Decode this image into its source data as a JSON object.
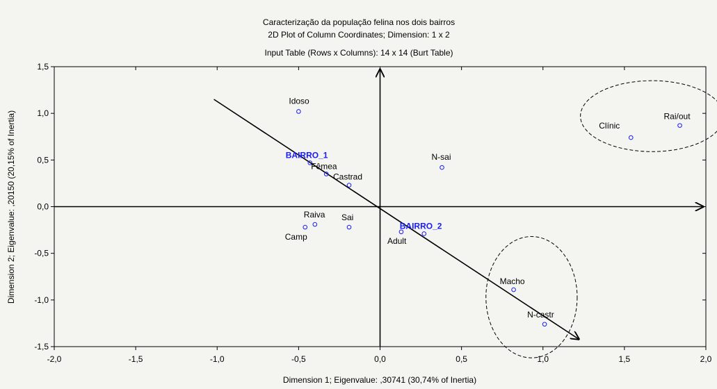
{
  "chart_data": {
    "type": "scatter",
    "title": "Caracterização da população felina nos dois bairros",
    "subtitle": "2D Plot of Column Coordinates; Dimension:  1 x 2",
    "subtitle2": "Input Table (Rows x Columns): 14 x 14 (Burt Table)",
    "xlabel": "Dimension 1; Eigenvalue: ,30741 (30,74% of Inertia)",
    "ylabel": "Dimension 2; Eigenvalue: ,20150 (20,15% of Inertia)",
    "xlim": [
      -2.0,
      2.0
    ],
    "ylim": [
      -1.5,
      1.5
    ],
    "xticks": [
      {
        "v": -2.0,
        "label": "-2,0"
      },
      {
        "v": -1.5,
        "label": "-1,5"
      },
      {
        "v": -1.0,
        "label": "-1,0"
      },
      {
        "v": -0.5,
        "label": "-0,5"
      },
      {
        "v": 0.0,
        "label": "0,0"
      },
      {
        "v": 0.5,
        "label": "0,5"
      },
      {
        "v": 1.0,
        "label": "1,0"
      },
      {
        "v": 1.5,
        "label": "1,5"
      },
      {
        "v": 2.0,
        "label": "2,0"
      }
    ],
    "yticks": [
      {
        "v": -1.5,
        "label": "-1,5"
      },
      {
        "v": -1.0,
        "label": "-1,0"
      },
      {
        "v": -0.5,
        "label": "-0,5"
      },
      {
        "v": 0.0,
        "label": "0,0"
      },
      {
        "v": 0.5,
        "label": "0,5"
      },
      {
        "v": 1.0,
        "label": "1,0"
      },
      {
        "v": 1.5,
        "label": "1,5"
      }
    ],
    "points": [
      {
        "name": "Idoso",
        "x": -0.5,
        "y": 1.02,
        "bold": false
      },
      {
        "name": "BAIRRO_1",
        "x": -0.43,
        "y": 0.47,
        "bold": true
      },
      {
        "name": "Fêmea",
        "x": -0.33,
        "y": 0.35,
        "bold": false
      },
      {
        "name": "Castrad",
        "x": -0.19,
        "y": 0.23,
        "bold": false
      },
      {
        "name": "N-sai",
        "x": 0.38,
        "y": 0.42,
        "bold": false
      },
      {
        "name": "Raiva",
        "x": -0.4,
        "y": -0.19,
        "bold": false
      },
      {
        "name": "Camp",
        "x": -0.46,
        "y": -0.22,
        "bold": false
      },
      {
        "name": "Sai",
        "x": -0.19,
        "y": -0.22,
        "bold": false
      },
      {
        "name": "BAIRRO_2",
        "x": 0.27,
        "y": -0.29,
        "bold": true
      },
      {
        "name": "Adult",
        "x": 0.13,
        "y": -0.27,
        "bold": false
      },
      {
        "name": "Clínic",
        "x": 1.54,
        "y": 0.74,
        "bold": false
      },
      {
        "name": "Rai/out",
        "x": 1.84,
        "y": 0.87,
        "bold": false
      },
      {
        "name": "Macho",
        "x": 0.82,
        "y": -0.89,
        "bold": false
      },
      {
        "name": "N-castr",
        "x": 1.01,
        "y": -1.26,
        "bold": false
      }
    ],
    "trend_arrow": {
      "from": [
        -1.02,
        1.15
      ],
      "to": [
        1.22,
        -1.42
      ]
    },
    "ellipses": [
      {
        "cx": 1.67,
        "cy": 0.97,
        "rx": 0.44,
        "ry": 0.38
      },
      {
        "cx": 0.93,
        "cy": -0.97,
        "rx": 0.28,
        "ry": 0.65
      }
    ],
    "grid": false,
    "colors": {
      "marker": "#1a1aff",
      "background": "#f4f4f0",
      "bold_label": "#1a1aff"
    }
  }
}
